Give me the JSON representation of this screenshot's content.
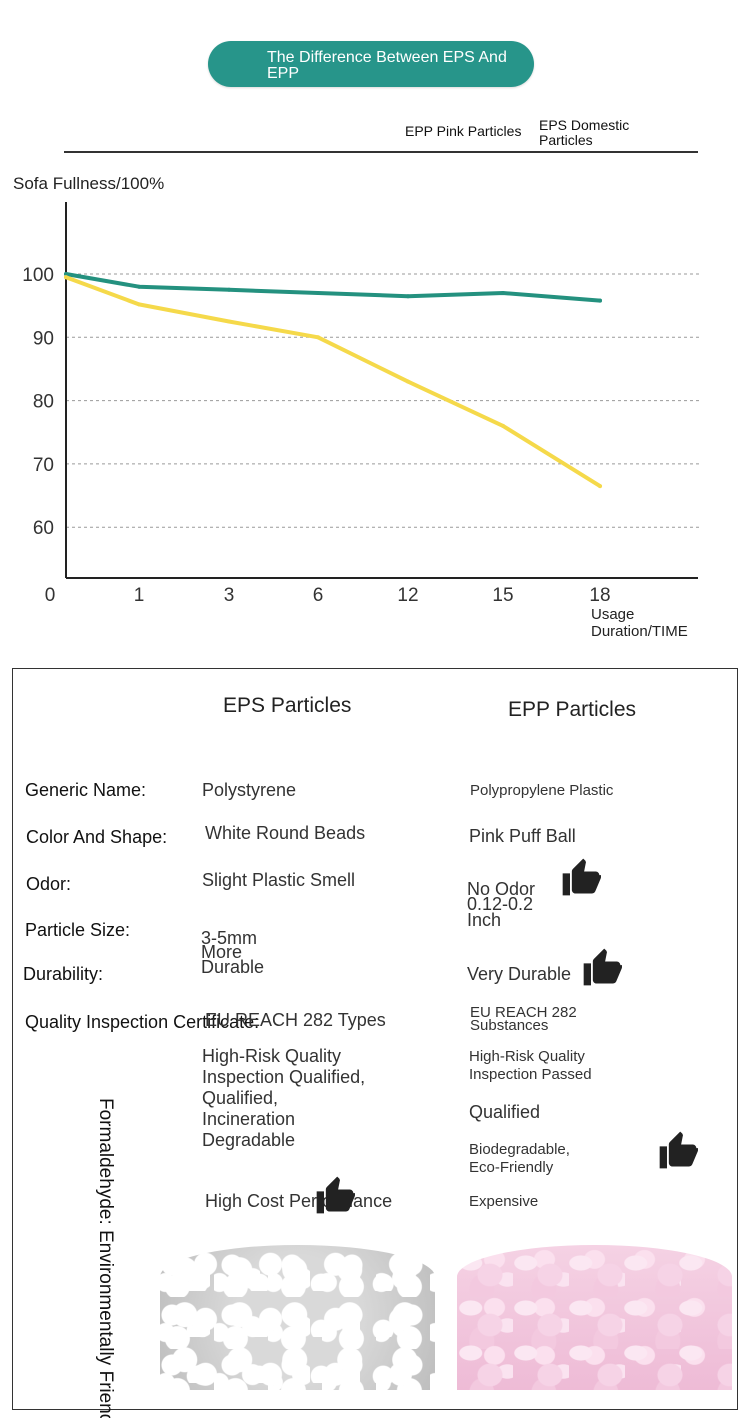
{
  "header": {
    "title": "The Difference Between EPS And EPP"
  },
  "legend": {
    "epp_label": "EPP Pink Particles",
    "eps_label": "EPS Domestic Particles"
  },
  "chart_data": {
    "type": "line",
    "ylabel": "Sofa Fullness/100%",
    "xlabel": "Usage Duration/TIME",
    "categories": [
      "0",
      "1",
      "3",
      "6",
      "12",
      "15",
      "18"
    ],
    "yticks": [
      100,
      90,
      80,
      70,
      60
    ],
    "ylim": [
      50,
      110
    ],
    "grid": true,
    "series": [
      {
        "name": "EPP Pink Particles",
        "color": "#24917f",
        "values": [
          100,
          98,
          97.5,
          97,
          96.5,
          97,
          95.8
        ]
      },
      {
        "name": "EPS Domestic Particles",
        "color": "#f5d94a",
        "values": [
          99.5,
          95.2,
          92.5,
          90,
          83,
          76,
          66.5
        ]
      }
    ]
  },
  "table": {
    "eps_header": "EPS Particles",
    "epp_header": "EPP Particles",
    "labels": {
      "generic_name": "Generic Name:",
      "color_shape": "Color And Shape:",
      "odor": "Odor:",
      "particle_size": "Particle Size:",
      "durability": "Durability:",
      "quality": "Quality Inspection Certificate:",
      "formaldehyde": "Formaldehyde: Environmentally Friendly"
    },
    "eps": {
      "generic_name": "Polystyrene",
      "color_shape": "White Round Beads",
      "odor": "Slight Plastic Smell",
      "particle_size": "3-5mm",
      "durability": "More Durable",
      "quality": "EU REACH 282 Types",
      "risk": "High-Risk Quality Inspection Qualified, Qualified, Incineration Degradable",
      "cost": "High Cost Performance"
    },
    "epp": {
      "generic_name": "Polypropylene Plastic",
      "color_shape": "Pink Puff Ball",
      "odor": "No Odor",
      "particle_size": "0.12-0.2 Inch",
      "durability": "Very Durable",
      "quality": "EU REACH 282 Substances",
      "risk": "High-Risk Quality Inspection Passed",
      "qualified": "Qualified",
      "eco": "Biodegradable, Eco-Friendly",
      "cost": "Expensive"
    },
    "icons": {
      "thumb": "thumbs-up-icon",
      "white_beads": "white-eps-beads-image",
      "pink_beads": "pink-epp-beads-image"
    }
  }
}
